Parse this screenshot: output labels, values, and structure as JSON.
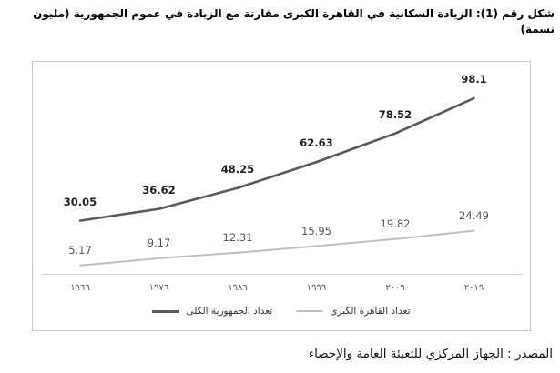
{
  "title": "شكل رقم (1): الزيادة السكانية في القاهرة الكبرى مقارنة مع الزيادة في عموم الجمهورية (مليون نسمة)",
  "source": "المصدر : الجهاز المركزي للتعبئة العامة والإحصاء",
  "colors": {
    "total_line": "#595959",
    "cairo_line": "#bfbfbf",
    "axis_line": "#cdcdcd",
    "frame_border": "#c6c6c6",
    "dark_label": "#1f1f1f",
    "light_label": "#555555",
    "tick_label": "#595959"
  },
  "chart_data": {
    "type": "line",
    "title": "شكل رقم (1): الزيادة السكانية في القاهرة الكبرى مقارنة مع الزيادة في عموم الجمهورية (مليون نسمة)",
    "categories": [
      "١٩٦٦",
      "١٩٧٦",
      "١٩٨٦",
      "١٩٩٩",
      "٢٠٠٩",
      "٢٠١٩"
    ],
    "series": [
      {
        "name": "تعداد الجمهورية الكلى",
        "values": [
          30.05,
          36.62,
          48.25,
          62.63,
          78.52,
          98.1
        ],
        "labels": [
          "30.05",
          "36.62",
          "48.25",
          "62.63",
          "78.52",
          "98.1"
        ],
        "color": "#595959"
      },
      {
        "name": "تعداد القاهرة الكبرى",
        "values": [
          5.17,
          9.17,
          12.31,
          15.95,
          19.82,
          24.49
        ],
        "labels": [
          "5.17",
          "9.17",
          "12.31",
          "15.95",
          "19.82",
          "24.49"
        ],
        "color": "#bfbfbf"
      }
    ],
    "xlabel": "",
    "ylabel": "",
    "ylim": [
      0,
      118
    ],
    "grid": false,
    "legend_position": "bottom"
  }
}
